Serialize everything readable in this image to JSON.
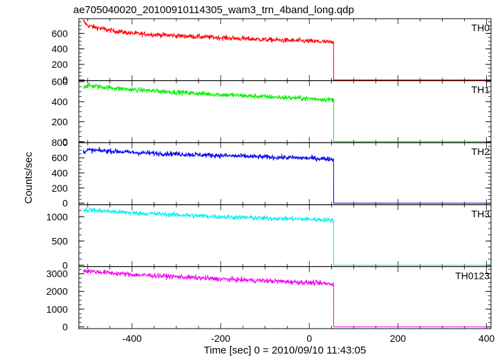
{
  "chart_data": {
    "type": "line",
    "title": "ae705040020_20100910114305_wam3_trn_4band_long.qdp",
    "xlabel": "Time [sec] 0 = 2010/09/10 11:43:05",
    "ylabel": "Counts/sec",
    "xlim": [
      -520,
      410
    ],
    "xticks": [
      -400,
      -200,
      0,
      200,
      400
    ],
    "x_drop": 55,
    "x_end": 400,
    "x_start": -510,
    "grid": false,
    "panels": [
      {
        "name": "TH0",
        "color": "#ff0000",
        "ylim": [
          -10,
          790
        ],
        "yticks": [
          0,
          200,
          400,
          600
        ],
        "x": [
          -510,
          -500,
          -450,
          -400,
          -300,
          -200,
          -100,
          0,
          50,
          55
        ],
        "y": [
          760,
          700,
          640,
          600,
          570,
          545,
          520,
          500,
          485,
          480
        ]
      },
      {
        "name": "TH1",
        "color": "#00ee00",
        "ylim": [
          -10,
          610
        ],
        "yticks": [
          0,
          200,
          400,
          600
        ],
        "x": [
          -510,
          -500,
          -450,
          -400,
          -300,
          -200,
          -100,
          0,
          50,
          55
        ],
        "y": [
          550,
          560,
          540,
          520,
          495,
          470,
          450,
          430,
          420,
          420
        ]
      },
      {
        "name": "TH2",
        "color": "#0000ee",
        "ylim": [
          -20,
          800
        ],
        "yticks": [
          0,
          200,
          400,
          600,
          800
        ],
        "x": [
          -510,
          -500,
          -450,
          -400,
          -300,
          -200,
          -100,
          0,
          50,
          55
        ],
        "y": [
          680,
          700,
          690,
          670,
          650,
          630,
          610,
          595,
          585,
          580
        ]
      },
      {
        "name": "TH3",
        "color": "#00eeee",
        "ylim": [
          -30,
          1250
        ],
        "yticks": [
          0,
          500,
          1000
        ],
        "x": [
          -510,
          -500,
          -450,
          -400,
          -300,
          -200,
          -100,
          0,
          50,
          55
        ],
        "y": [
          1150,
          1140,
          1110,
          1080,
          1040,
          1000,
          970,
          950,
          930,
          920
        ]
      },
      {
        "name": "TH0123",
        "color": "#ee00ee",
        "ylim": [
          -100,
          3400
        ],
        "yticks": [
          0,
          1000,
          2000,
          3000
        ],
        "x": [
          -510,
          -500,
          -450,
          -400,
          -300,
          -200,
          -100,
          0,
          50,
          55
        ],
        "y": [
          3180,
          3150,
          3050,
          2950,
          2830,
          2700,
          2600,
          2500,
          2430,
          2420
        ]
      }
    ]
  }
}
